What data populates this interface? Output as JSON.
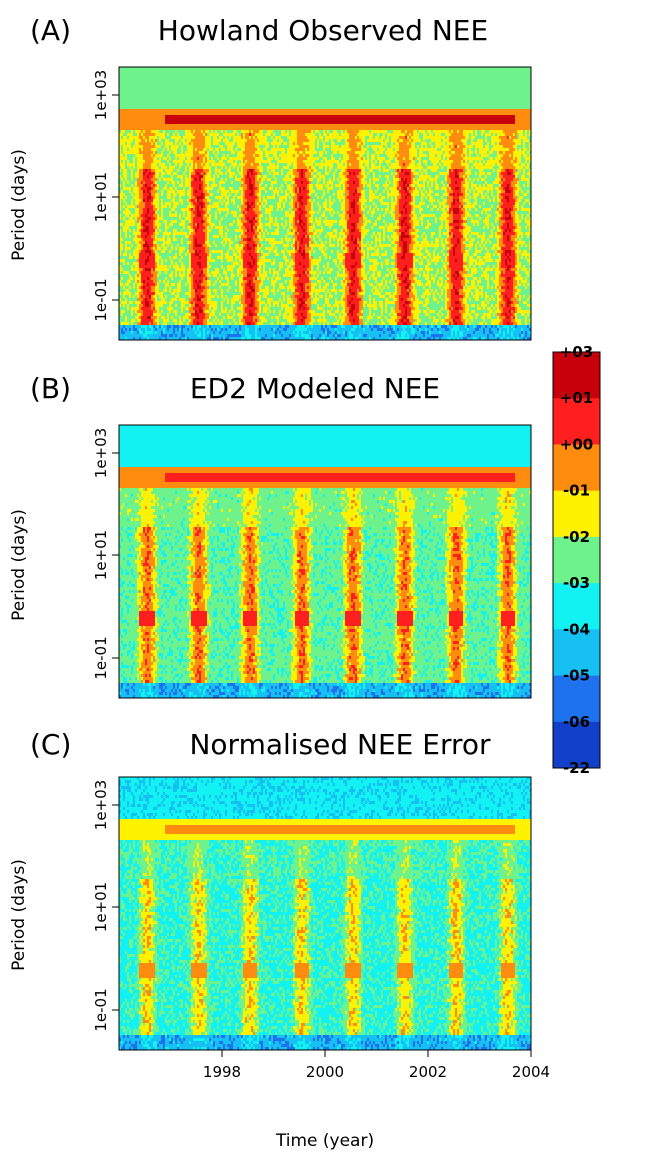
{
  "chart_data": [
    {
      "type": "heatmap",
      "panel_label": "(A)",
      "title": "Howland Observed NEE",
      "ylabel": "Period (days)",
      "y_ticks": [
        "1e-01",
        "1e+01",
        "1e+03"
      ],
      "xlim": [
        1996.0,
        2004.0
      ],
      "ylog_range": [
        -1.6,
        3.55
      ],
      "seasonal_peak": "red",
      "annual_band": "orange",
      "annual_line": "dark-red"
    },
    {
      "type": "heatmap",
      "panel_label": "(B)",
      "title": "ED2 Modeled NEE",
      "ylabel": "Period (days)",
      "y_ticks": [
        "1e-01",
        "1e+01",
        "1e+03"
      ],
      "xlim": [
        1996.0,
        2004.0
      ],
      "ylog_range": [
        -1.6,
        3.55
      ],
      "seasonal_peak": "red",
      "annual_band": "orange",
      "annual_line": "red"
    },
    {
      "type": "heatmap",
      "panel_label": "(C)",
      "title": "Normalised NEE Error",
      "ylabel": "Period (days)",
      "y_ticks": [
        "1e-01",
        "1e+01",
        "1e+03"
      ],
      "x_ticks": [
        "1998",
        "2000",
        "2002",
        "2004"
      ],
      "xlabel": "Time (year)",
      "xlim": [
        1996.0,
        2004.0
      ],
      "ylog_range": [
        -1.6,
        3.55
      ],
      "seasonal_peak": "orange",
      "annual_band": "yellow",
      "annual_line": "orange"
    }
  ],
  "legend": {
    "labels": [
      "+03",
      "+01",
      "+00",
      "-01",
      "-02",
      "-03",
      "-04",
      "-05",
      "-06",
      "-22"
    ],
    "colors": [
      "#c8000c",
      "#ff1f1f",
      "#ff8c0f",
      "#fff200",
      "#6ef28c",
      "#12f2f2",
      "#16c0f2",
      "#1f72ee",
      "#1340c8"
    ]
  }
}
